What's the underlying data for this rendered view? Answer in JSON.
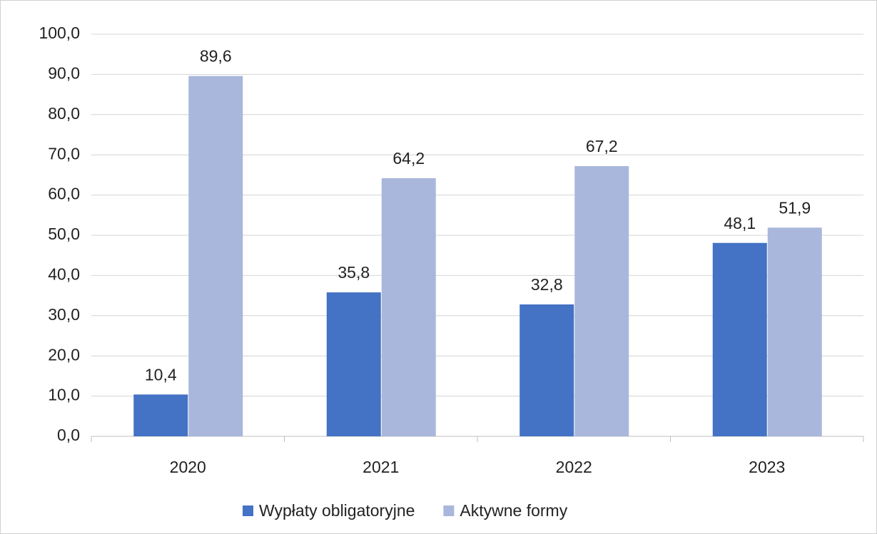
{
  "chart_data": {
    "type": "bar",
    "categories": [
      "2020",
      "2021",
      "2022",
      "2023"
    ],
    "series": [
      {
        "name": "Wypłaty obligatoryjne",
        "color": "#4472c4",
        "values": [
          10.4,
          35.8,
          32.8,
          48.1
        ],
        "value_labels": [
          "10,4",
          "35,8",
          "32,8",
          "48,1"
        ]
      },
      {
        "name": "Aktywne formy",
        "color": "#a9b7dc",
        "values": [
          89.6,
          64.2,
          67.2,
          51.9
        ],
        "value_labels": [
          "89,6",
          "64,2",
          "67,2",
          "51,9"
        ]
      }
    ],
    "ylim": [
      0,
      100
    ],
    "yticks": [
      {
        "value": 0,
        "label": "0,0"
      },
      {
        "value": 10,
        "label": "10,0"
      },
      {
        "value": 20,
        "label": "20,0"
      },
      {
        "value": 30,
        "label": "30,0"
      },
      {
        "value": 40,
        "label": "40,0"
      },
      {
        "value": 50,
        "label": "50,0"
      },
      {
        "value": 60,
        "label": "60,0"
      },
      {
        "value": 70,
        "label": "70,0"
      },
      {
        "value": 80,
        "label": "80,0"
      },
      {
        "value": 90,
        "label": "90,0"
      },
      {
        "value": 100,
        "label": "100,0"
      }
    ],
    "grid": true,
    "legend": "bottom"
  }
}
